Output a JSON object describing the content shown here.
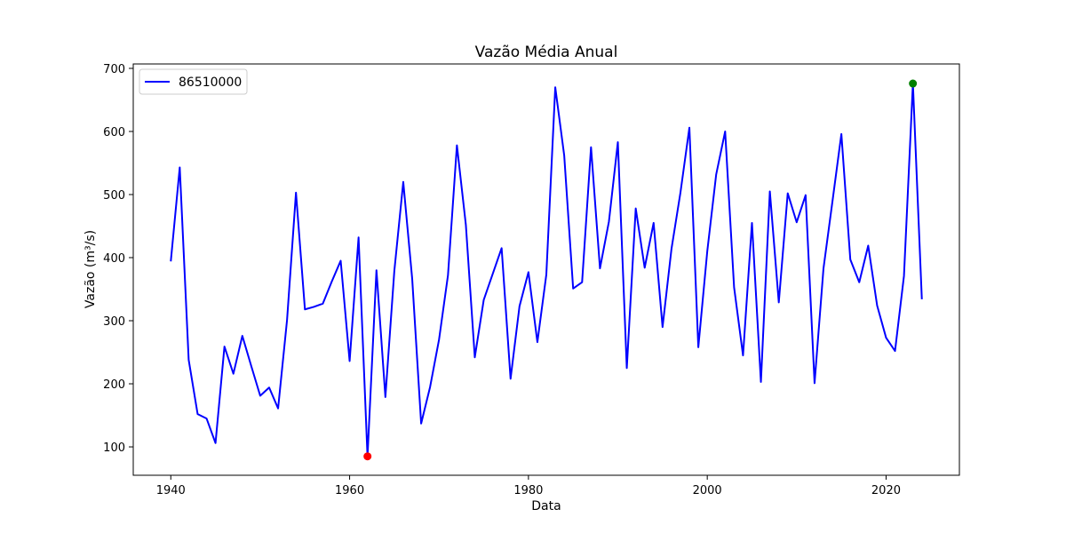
{
  "chart_data": {
    "type": "line",
    "title": "Vazão Média Anual",
    "xlabel": "Data",
    "ylabel": "Vazão (m³/s)",
    "xlim": [
      1935.8,
      2028.2
    ],
    "ylim": [
      55,
      707
    ],
    "xticks": [
      1940,
      1960,
      1980,
      2000,
      2020
    ],
    "yticks": [
      100,
      200,
      300,
      400,
      500,
      600,
      700
    ],
    "grid": false,
    "legend_position": "top-left",
    "series": [
      {
        "name": "86510000",
        "color": "#0000ff",
        "x": [
          1940,
          1941,
          1942,
          1943,
          1944,
          1945,
          1946,
          1947,
          1948,
          1949,
          1950,
          1951,
          1952,
          1953,
          1954,
          1955,
          1956,
          1957,
          1958,
          1959,
          1960,
          1961,
          1962,
          1963,
          1964,
          1965,
          1966,
          1967,
          1968,
          1969,
          1970,
          1971,
          1972,
          1973,
          1974,
          1975,
          1976,
          1977,
          1978,
          1979,
          1980,
          1981,
          1982,
          1983,
          1984,
          1985,
          1986,
          1987,
          1988,
          1989,
          1990,
          1991,
          1992,
          1993,
          1994,
          1995,
          1996,
          1997,
          1998,
          1999,
          2000,
          2001,
          2002,
          2003,
          2004,
          2005,
          2006,
          2007,
          2008,
          2009,
          2010,
          2011,
          2012,
          2013,
          2014,
          2015,
          2016,
          2017,
          2018,
          2019,
          2020,
          2021,
          2022,
          2023,
          2024
        ],
        "y": [
          394,
          543,
          238,
          152,
          145,
          106,
          259,
          216,
          276,
          228,
          181,
          194,
          161,
          301,
          503,
          318,
          322,
          327,
          362,
          395,
          236,
          432,
          85,
          380,
          179,
          379,
          520,
          366,
          137,
          195,
          270,
          372,
          578,
          452,
          242,
          333,
          374,
          415,
          208,
          323,
          377,
          266,
          373,
          670,
          562,
          351,
          361,
          575,
          383,
          457,
          583,
          225,
          478,
          384,
          455,
          290,
          414,
          503,
          606,
          258,
          410,
          532,
          600,
          353,
          245,
          455,
          203,
          505,
          329,
          502,
          456,
          499,
          201,
          383,
          489,
          596,
          397,
          361,
          419,
          324,
          273,
          252,
          371,
          676,
          334
        ]
      }
    ],
    "markers": [
      {
        "label": "min",
        "x": 1962,
        "y": 85,
        "color": "#ff0000"
      },
      {
        "label": "max",
        "x": 2023,
        "y": 676,
        "color": "#008000"
      }
    ]
  }
}
